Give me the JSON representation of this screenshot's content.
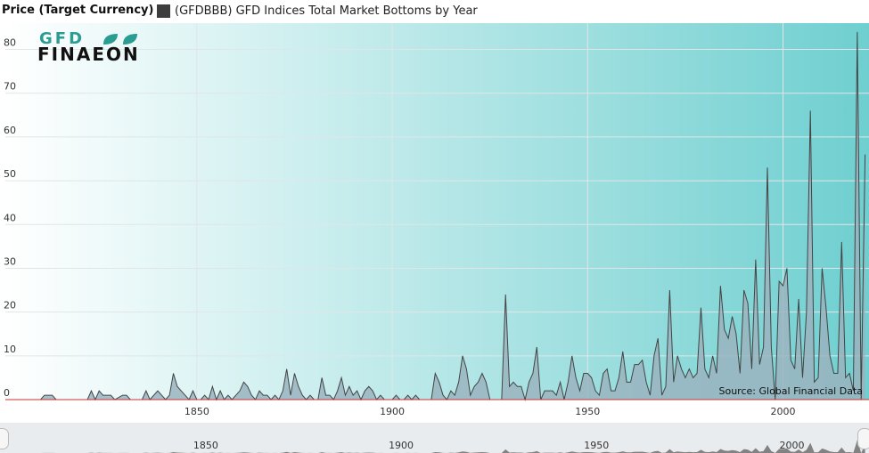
{
  "header": {
    "y_title": "Price (Target Currency)",
    "legend_label": "(GFDBBB) GFD Indices Total Market Bottoms by Year",
    "legend_color": "#3d3d3d"
  },
  "logo": {
    "top": "GFD",
    "bottom": "FINAEON"
  },
  "source": "Source: Global Financial Data",
  "colors": {
    "area_fill": "#9ab4bf",
    "area_line": "#444444",
    "bg_left": "#ffffff",
    "bg_right": "#6fcfd0",
    "grid": "#e0e6e8",
    "zero_line": "#cc3333",
    "navigator_fill": "#777777"
  },
  "chart_data": {
    "type": "area",
    "title": "",
    "xlabel": "",
    "ylabel": "Price (Target Currency)",
    "xlim": [
      1801,
      2022
    ],
    "ylim": [
      0,
      86
    ],
    "y_ticks": [
      0,
      10,
      20,
      30,
      40,
      50,
      60,
      70,
      80
    ],
    "x_ticks": [
      1850,
      1900,
      1950,
      2000
    ],
    "grid": true,
    "legend": "top-left",
    "series": [
      {
        "name": "(GFDBBB) GFD Indices Total Market Bottoms by Year",
        "points": [
          [
            1801,
            0
          ],
          [
            1810,
            0
          ],
          [
            1811,
            1
          ],
          [
            1813,
            1
          ],
          [
            1814,
            0
          ],
          [
            1822,
            0
          ],
          [
            1823,
            2
          ],
          [
            1824,
            0
          ],
          [
            1825,
            2
          ],
          [
            1826,
            1
          ],
          [
            1828,
            1
          ],
          [
            1829,
            0
          ],
          [
            1831,
            1
          ],
          [
            1832,
            1
          ],
          [
            1833,
            0
          ],
          [
            1836,
            0
          ],
          [
            1837,
            2
          ],
          [
            1838,
            0
          ],
          [
            1840,
            2
          ],
          [
            1841,
            1
          ],
          [
            1842,
            0
          ],
          [
            1843,
            1
          ],
          [
            1844,
            6
          ],
          [
            1845,
            3
          ],
          [
            1846,
            2
          ],
          [
            1847,
            1
          ],
          [
            1848,
            0
          ],
          [
            1849,
            2
          ],
          [
            1850,
            0
          ],
          [
            1851,
            0
          ],
          [
            1852,
            1
          ],
          [
            1853,
            0
          ],
          [
            1854,
            3
          ],
          [
            1855,
            0
          ],
          [
            1856,
            2
          ],
          [
            1857,
            0
          ],
          [
            1858,
            1
          ],
          [
            1859,
            0
          ],
          [
            1860,
            1
          ],
          [
            1861,
            2
          ],
          [
            1862,
            4
          ],
          [
            1863,
            3
          ],
          [
            1864,
            1
          ],
          [
            1865,
            0
          ],
          [
            1866,
            2
          ],
          [
            1867,
            1
          ],
          [
            1868,
            1
          ],
          [
            1869,
            0
          ],
          [
            1870,
            1
          ],
          [
            1871,
            0
          ],
          [
            1872,
            2
          ],
          [
            1873,
            7
          ],
          [
            1874,
            1
          ],
          [
            1875,
            6
          ],
          [
            1876,
            3
          ],
          [
            1877,
            1
          ],
          [
            1878,
            0
          ],
          [
            1879,
            1
          ],
          [
            1880,
            0
          ],
          [
            1881,
            0
          ],
          [
            1882,
            5
          ],
          [
            1883,
            1
          ],
          [
            1884,
            1
          ],
          [
            1885,
            0
          ],
          [
            1886,
            2
          ],
          [
            1887,
            5
          ],
          [
            1888,
            1
          ],
          [
            1889,
            3
          ],
          [
            1890,
            1
          ],
          [
            1891,
            2
          ],
          [
            1892,
            0
          ],
          [
            1893,
            2
          ],
          [
            1894,
            3
          ],
          [
            1895,
            2
          ],
          [
            1896,
            0
          ],
          [
            1897,
            1
          ],
          [
            1898,
            0
          ],
          [
            1899,
            0
          ],
          [
            1900,
            0
          ],
          [
            1901,
            1
          ],
          [
            1902,
            0
          ],
          [
            1903,
            0
          ],
          [
            1904,
            1
          ],
          [
            1905,
            0
          ],
          [
            1906,
            1
          ],
          [
            1907,
            0
          ],
          [
            1908,
            0
          ],
          [
            1909,
            0
          ],
          [
            1910,
            0
          ],
          [
            1911,
            6
          ],
          [
            1912,
            4
          ],
          [
            1913,
            1
          ],
          [
            1914,
            0
          ],
          [
            1915,
            2
          ],
          [
            1916,
            1
          ],
          [
            1917,
            4
          ],
          [
            1918,
            10
          ],
          [
            1919,
            7
          ],
          [
            1920,
            1
          ],
          [
            1921,
            3
          ],
          [
            1922,
            4
          ],
          [
            1923,
            6
          ],
          [
            1924,
            4
          ],
          [
            1925,
            0
          ],
          [
            1926,
            0
          ],
          [
            1927,
            0
          ],
          [
            1928,
            0
          ],
          [
            1929,
            24
          ],
          [
            1930,
            3
          ],
          [
            1931,
            4
          ],
          [
            1932,
            3
          ],
          [
            1933,
            3
          ],
          [
            1934,
            0
          ],
          [
            1935,
            4
          ],
          [
            1936,
            6
          ],
          [
            1937,
            12
          ],
          [
            1938,
            0
          ],
          [
            1939,
            2
          ],
          [
            1940,
            2
          ],
          [
            1941,
            2
          ],
          [
            1942,
            1
          ],
          [
            1943,
            4
          ],
          [
            1944,
            0
          ],
          [
            1945,
            4
          ],
          [
            1946,
            10
          ],
          [
            1947,
            5
          ],
          [
            1948,
            2
          ],
          [
            1949,
            6
          ],
          [
            1950,
            6
          ],
          [
            1951,
            5
          ],
          [
            1952,
            2
          ],
          [
            1953,
            1
          ],
          [
            1954,
            6
          ],
          [
            1955,
            7
          ],
          [
            1956,
            2
          ],
          [
            1957,
            2
          ],
          [
            1958,
            5
          ],
          [
            1959,
            11
          ],
          [
            1960,
            4
          ],
          [
            1961,
            4
          ],
          [
            1962,
            8
          ],
          [
            1963,
            8
          ],
          [
            1964,
            9
          ],
          [
            1965,
            4
          ],
          [
            1966,
            1
          ],
          [
            1967,
            10
          ],
          [
            1968,
            14
          ],
          [
            1969,
            1
          ],
          [
            1970,
            3
          ],
          [
            1971,
            25
          ],
          [
            1972,
            4
          ],
          [
            1973,
            10
          ],
          [
            1974,
            7
          ],
          [
            1975,
            5
          ],
          [
            1976,
            7
          ],
          [
            1977,
            5
          ],
          [
            1978,
            6
          ],
          [
            1979,
            21
          ],
          [
            1980,
            7
          ],
          [
            1981,
            5
          ],
          [
            1982,
            10
          ],
          [
            1983,
            6
          ],
          [
            1984,
            26
          ],
          [
            1985,
            16
          ],
          [
            1986,
            14
          ],
          [
            1987,
            19
          ],
          [
            1988,
            15
          ],
          [
            1989,
            6
          ],
          [
            1990,
            25
          ],
          [
            1991,
            22
          ],
          [
            1992,
            7
          ],
          [
            1993,
            32
          ],
          [
            1994,
            8
          ],
          [
            1995,
            12
          ],
          [
            1996,
            53
          ],
          [
            1997,
            12
          ],
          [
            1998,
            0
          ],
          [
            1999,
            27
          ],
          [
            2000,
            26
          ],
          [
            2001,
            30
          ],
          [
            2002,
            9
          ],
          [
            2003,
            7
          ],
          [
            2004,
            23
          ],
          [
            2005,
            5
          ],
          [
            2006,
            20
          ],
          [
            2007,
            66
          ],
          [
            2008,
            4
          ],
          [
            2009,
            5
          ],
          [
            2010,
            30
          ],
          [
            2011,
            21
          ],
          [
            2012,
            10
          ],
          [
            2013,
            6
          ],
          [
            2014,
            6
          ],
          [
            2015,
            36
          ],
          [
            2016,
            5
          ],
          [
            2017,
            6
          ],
          [
            2018,
            2
          ],
          [
            2019,
            84
          ],
          [
            2020,
            0
          ],
          [
            2021,
            56
          ]
        ]
      }
    ]
  }
}
